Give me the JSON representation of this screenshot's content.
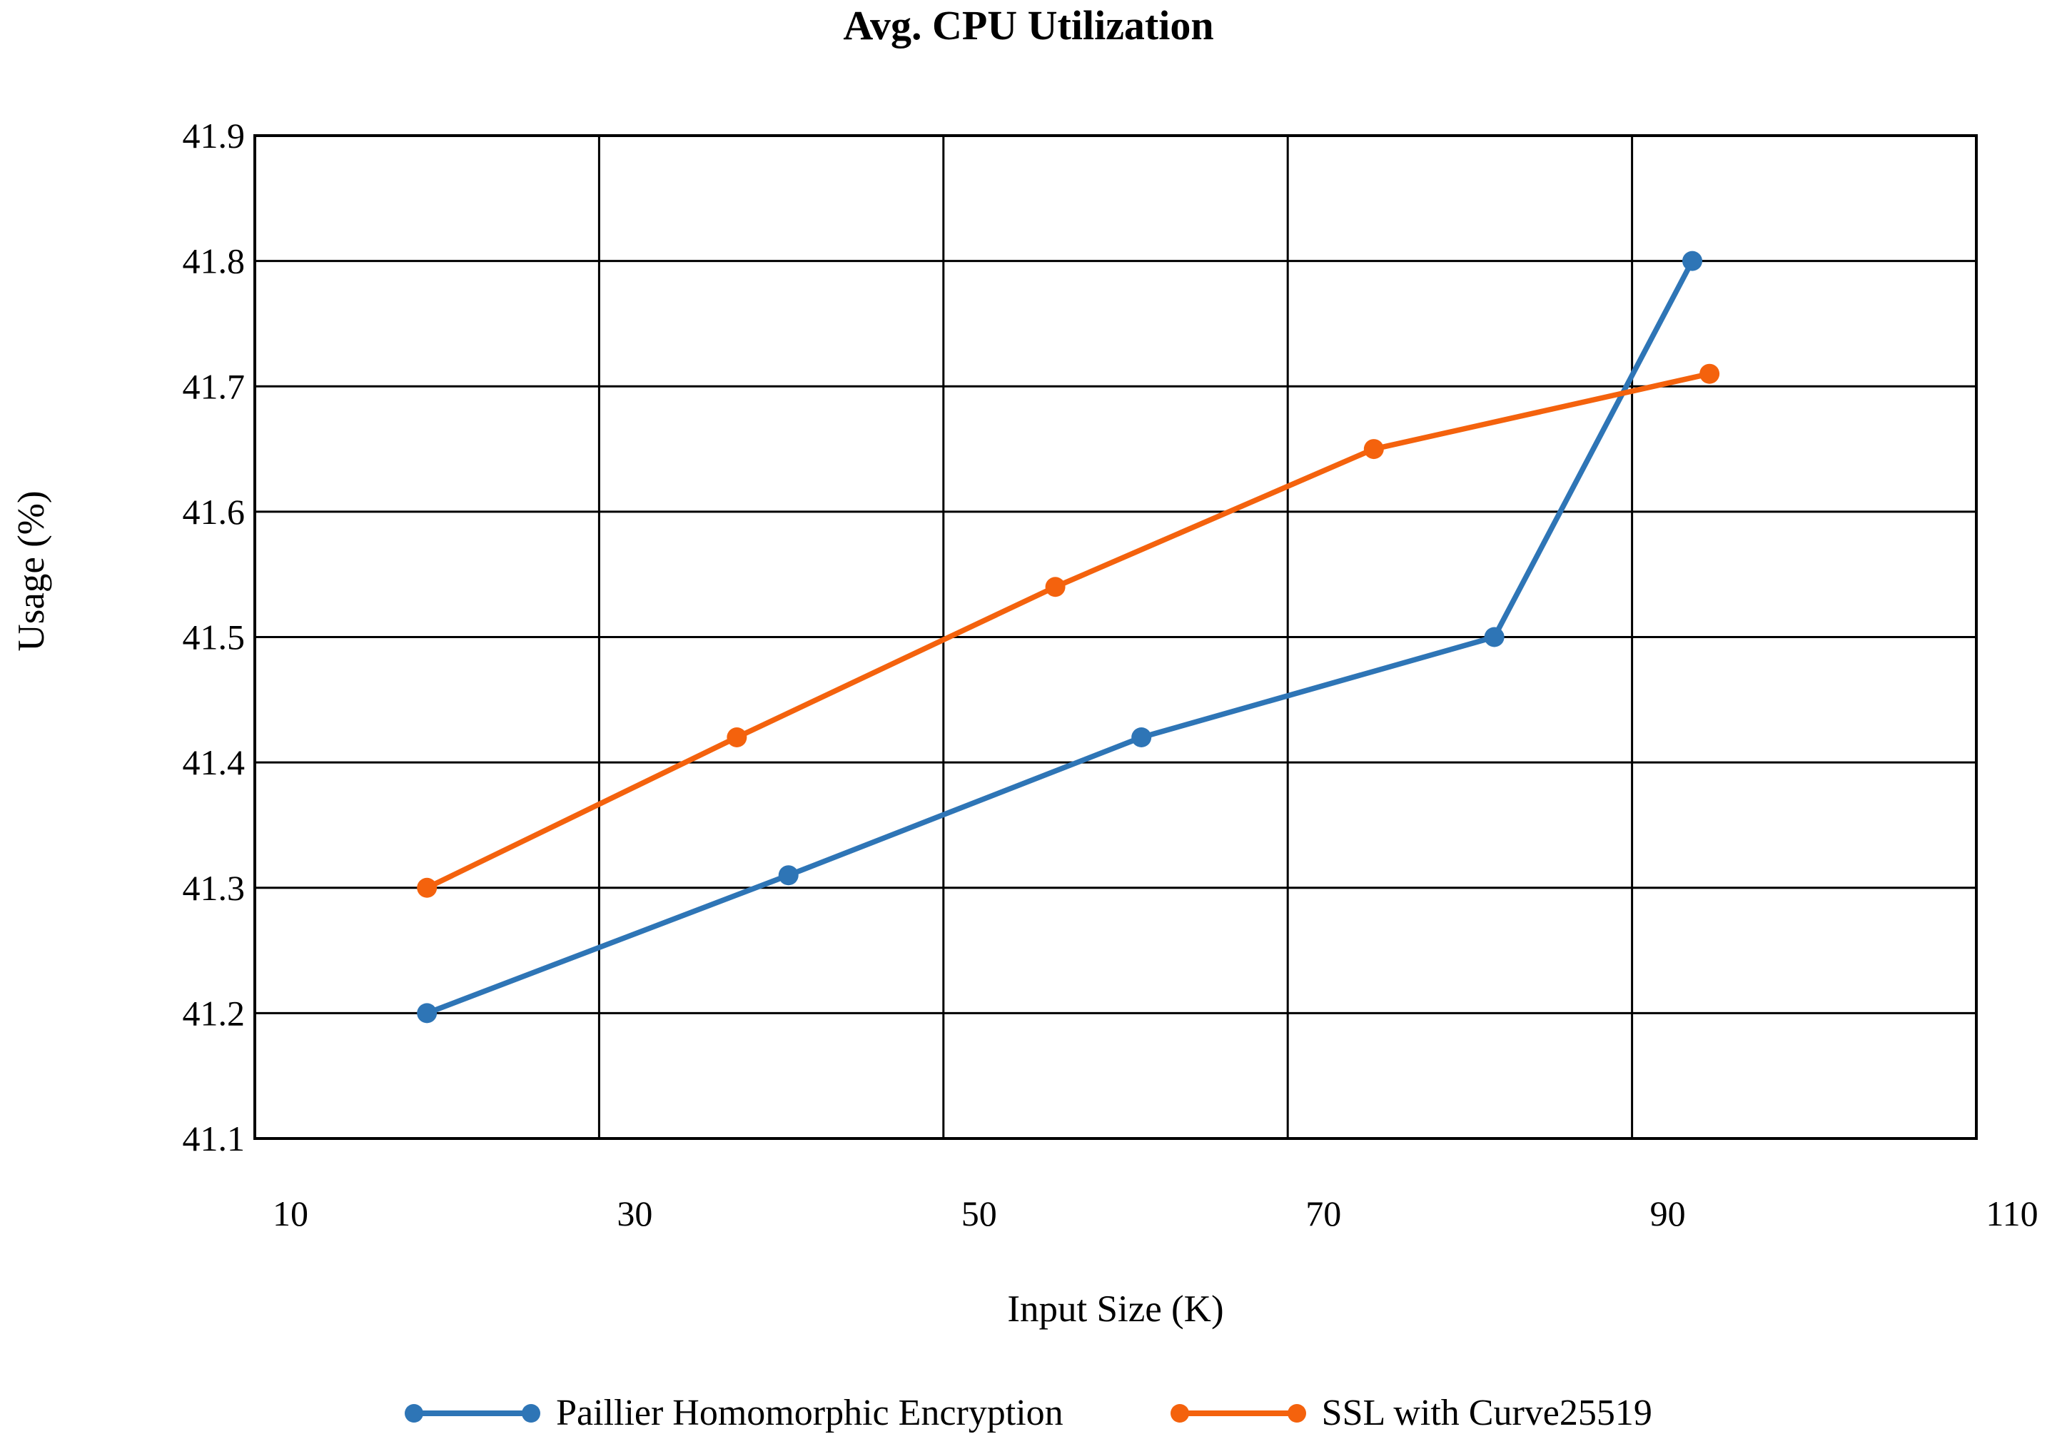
{
  "page": {
    "background_color": "#ffffff",
    "text_color": "#000000",
    "grid_color": "#000000"
  },
  "chart_data": {
    "type": "line",
    "title": "Avg. CPU Utilization",
    "xlabel": "Input Size (K)",
    "ylabel": "Usage (%)",
    "xlim": [
      10,
      110
    ],
    "ylim": [
      41.1,
      41.9
    ],
    "xticks": [
      10,
      30,
      50,
      70,
      90,
      110
    ],
    "yticks": [
      41.1,
      41.2,
      41.3,
      41.4,
      41.5,
      41.6,
      41.7,
      41.8,
      41.9
    ],
    "y_tick_decimals": 1,
    "grid": true,
    "legend_position": "bottom",
    "series": [
      {
        "name": "Paillier Homomorphic Encryption",
        "color": "#2E75B6",
        "x": [
          20,
          41,
          61.5,
          82,
          93.5
        ],
        "y": [
          41.2,
          41.31,
          41.42,
          41.5,
          41.8
        ]
      },
      {
        "name": "SSL with Curve25519",
        "color": "#F4620D",
        "x": [
          20,
          38,
          56.5,
          75,
          94.5
        ],
        "y": [
          41.3,
          41.42,
          41.54,
          41.65,
          41.71
        ]
      }
    ]
  }
}
